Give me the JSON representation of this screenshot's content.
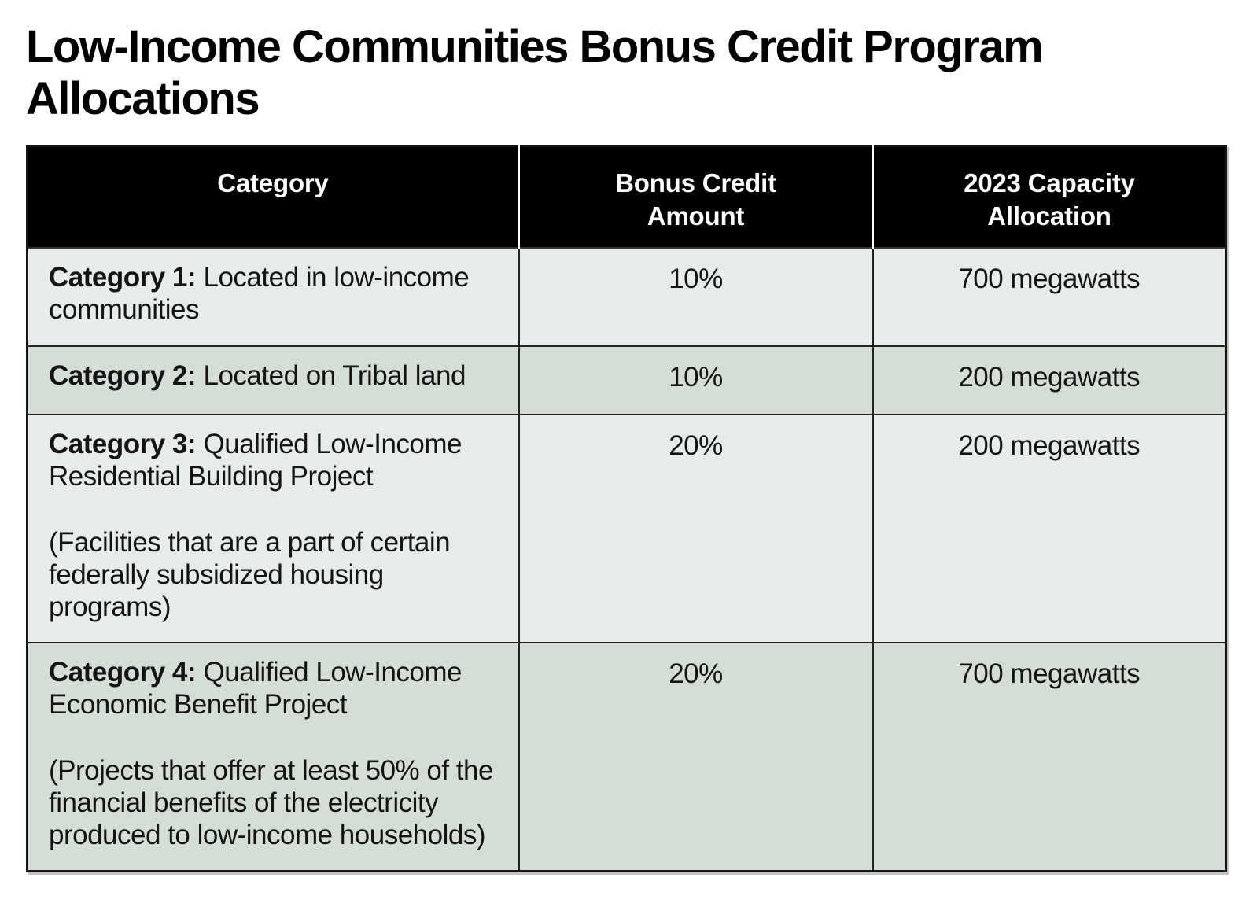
{
  "title": {
    "line1": "Low-Income Communities Bonus Credit Program",
    "line2": "Allocations"
  },
  "table": {
    "headers": [
      "Category",
      "Bonus Credit Amount",
      "2023 Capacity Allocation"
    ],
    "rows": [
      {
        "category_label": "Category 1:",
        "category_text": "Located in low-income communities",
        "bonus": "10%",
        "allocation": "700 megawatts"
      },
      {
        "category_label": "Category 2:",
        "category_text": "Located on Tribal land",
        "bonus": "10%",
        "allocation": "200 megawatts"
      },
      {
        "category_label": "Category 3:",
        "category_text": "Qualified Low-Income Residential Building Project",
        "note": "(Facilities that are a part of certain federally subsidized housing programs)",
        "bonus": "20%",
        "allocation": "200 megawatts"
      },
      {
        "category_label": "Category 4:",
        "category_text": "Qualified Low-Income Economic Benefit Project",
        "note": "(Projects that offer at least 50% of the financial benefits of the electricity produced to low-income households)",
        "bonus": "20%",
        "allocation": "700 megawatts"
      }
    ]
  },
  "colors": {
    "header_bg": "#000000",
    "header_text": "#ffffff",
    "row_light": "#e8ece9",
    "row_dark": "#d5ded6",
    "border": "#222222",
    "title_text": "#000000"
  }
}
